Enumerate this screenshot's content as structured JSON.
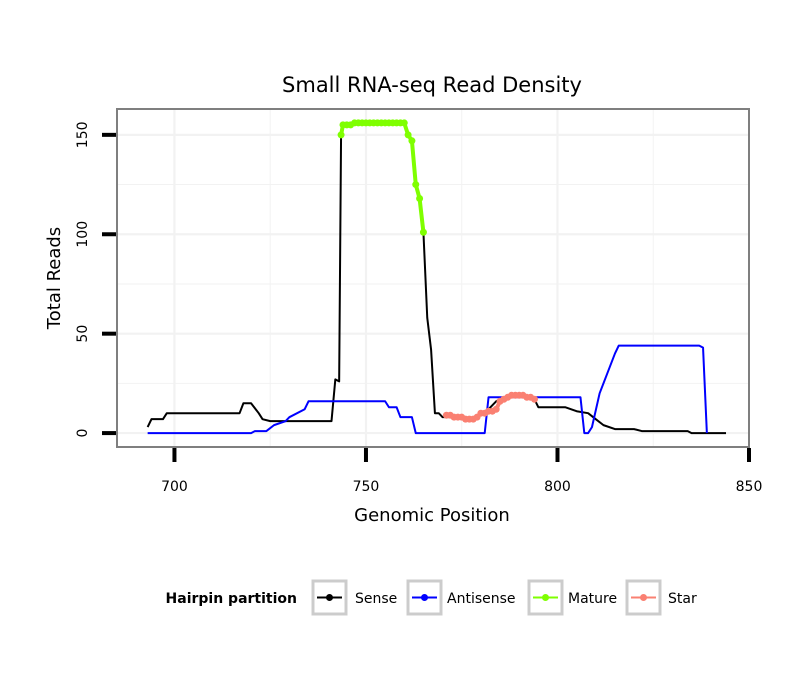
{
  "chart_data": {
    "type": "line",
    "title": "Small RNA-seq Read Density",
    "xlabel": "Genomic Position",
    "ylabel": "Total Reads",
    "xlim": [
      685,
      850
    ],
    "ylim": [
      -7,
      163
    ],
    "x_ticks": [
      700,
      750,
      800,
      850
    ],
    "y_ticks": [
      0,
      50,
      100,
      150
    ],
    "grid": true,
    "legend": {
      "title": "Hairpin partition",
      "position": "bottom",
      "entries": [
        "Sense",
        "Antisense",
        "Mature",
        "Star"
      ]
    },
    "series": [
      {
        "name": "Sense",
        "color": "#000000",
        "points": [
          [
            693,
            3
          ],
          [
            694,
            7
          ],
          [
            697,
            7
          ],
          [
            698,
            10
          ],
          [
            717,
            10
          ],
          [
            718,
            15
          ],
          [
            720,
            15
          ],
          [
            722,
            10
          ],
          [
            723,
            7
          ],
          [
            725,
            6
          ],
          [
            741,
            6
          ],
          [
            742,
            27
          ],
          [
            743,
            26
          ],
          [
            743.5,
            150
          ],
          [
            744,
            155
          ],
          [
            760,
            157
          ],
          [
            761,
            150
          ],
          [
            762,
            147
          ],
          [
            763,
            125
          ],
          [
            764,
            118
          ],
          [
            765,
            101
          ],
          [
            766,
            58
          ],
          [
            767,
            42
          ],
          [
            768,
            10
          ],
          [
            769,
            10
          ],
          [
            770,
            8
          ],
          [
            772,
            8
          ],
          [
            775,
            7
          ],
          [
            778,
            7
          ],
          [
            780,
            10
          ],
          [
            782,
            12
          ],
          [
            784,
            16
          ],
          [
            786,
            18
          ],
          [
            789,
            19
          ],
          [
            792,
            18
          ],
          [
            794,
            17
          ],
          [
            795,
            13
          ],
          [
            802,
            13
          ],
          [
            805,
            11
          ],
          [
            808,
            10
          ],
          [
            810,
            7
          ],
          [
            812,
            4
          ],
          [
            815,
            2
          ],
          [
            820,
            2
          ],
          [
            822,
            1
          ],
          [
            834,
            1
          ],
          [
            835,
            0
          ],
          [
            844,
            0
          ]
        ]
      },
      {
        "name": "Antisense",
        "color": "#0000ff",
        "points": [
          [
            693,
            0
          ],
          [
            713,
            0
          ],
          [
            720,
            0
          ],
          [
            721,
            1
          ],
          [
            724,
            1
          ],
          [
            726,
            4
          ],
          [
            729,
            6
          ],
          [
            730,
            8
          ],
          [
            734,
            12
          ],
          [
            735,
            16
          ],
          [
            746,
            16
          ],
          [
            755,
            16
          ],
          [
            756,
            13
          ],
          [
            758,
            13
          ],
          [
            759,
            8
          ],
          [
            762,
            8
          ],
          [
            763,
            0
          ],
          [
            781,
            0
          ],
          [
            782,
            18
          ],
          [
            806,
            18
          ],
          [
            807,
            0
          ],
          [
            808,
            0
          ],
          [
            809,
            3
          ],
          [
            811,
            20
          ],
          [
            813,
            30
          ],
          [
            815,
            40
          ],
          [
            816,
            44
          ],
          [
            837,
            44
          ],
          [
            838,
            43
          ],
          [
            839,
            0
          ]
        ]
      },
      {
        "name": "Mature",
        "color": "#7fff00",
        "points": [
          [
            743.5,
            150
          ],
          [
            744,
            155
          ],
          [
            745,
            155
          ],
          [
            746,
            155
          ],
          [
            747,
            156
          ],
          [
            748,
            156
          ],
          [
            749,
            156
          ],
          [
            750,
            156
          ],
          [
            751,
            156
          ],
          [
            752,
            156
          ],
          [
            753,
            156
          ],
          [
            754,
            156
          ],
          [
            755,
            156
          ],
          [
            756,
            156
          ],
          [
            757,
            156
          ],
          [
            758,
            156
          ],
          [
            759,
            156
          ],
          [
            760,
            156
          ],
          [
            761,
            150
          ],
          [
            762,
            147
          ],
          [
            763,
            125
          ],
          [
            764,
            118
          ],
          [
            765,
            101
          ]
        ]
      },
      {
        "name": "Star",
        "color": "#fa8072",
        "points": [
          [
            771,
            9
          ],
          [
            772,
            9
          ],
          [
            773,
            8
          ],
          [
            774,
            8
          ],
          [
            775,
            8
          ],
          [
            776,
            7
          ],
          [
            777,
            7
          ],
          [
            778,
            7
          ],
          [
            779,
            8
          ],
          [
            780,
            10
          ],
          [
            781,
            10
          ],
          [
            782,
            11
          ],
          [
            783,
            11
          ],
          [
            784,
            12
          ],
          [
            785,
            16
          ],
          [
            786,
            17
          ],
          [
            787,
            18
          ],
          [
            788,
            19
          ],
          [
            789,
            19
          ],
          [
            790,
            19
          ],
          [
            791,
            19
          ],
          [
            792,
            18
          ],
          [
            793,
            18
          ],
          [
            794,
            17
          ]
        ]
      }
    ]
  }
}
